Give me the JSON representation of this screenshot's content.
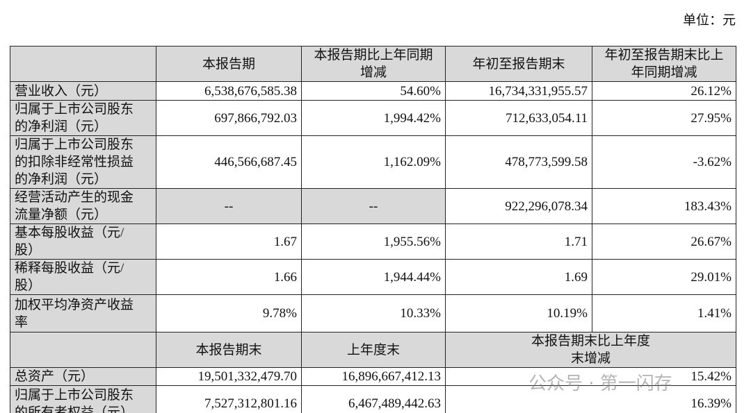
{
  "unit": "单位：元",
  "table": {
    "header": [
      "本报告期",
      "本报告期比上年同期增减",
      "年初至报告期末",
      "年初至报告期末比上年同期增减"
    ],
    "rows": [
      [
        "营业收入（元）",
        "6,538,676,585.38",
        "54.60%",
        "16,734,331,955.57",
        "26.12%"
      ],
      [
        "归属于上市公司股东的净利润（元）",
        "697,866,792.03",
        "1,994.42%",
        "712,633,054.11",
        "27.95%"
      ],
      [
        "归属于上市公司股东的扣除非经常性损益的净利润（元）",
        "446,566,687.45",
        "1,162.09%",
        "478,773,599.58",
        "-3.62%"
      ],
      [
        "经营活动产生的现金流量净额（元）",
        "--",
        "--",
        "922,296,078.34",
        "183.43%"
      ],
      [
        "基本每股收益（元/股）",
        "1.67",
        "1,955.56%",
        "1.71",
        "26.67%"
      ],
      [
        "稀释每股收益（元/股）",
        "1.66",
        "1,944.44%",
        "1.69",
        "29.01%"
      ],
      [
        "加权平均净资产收益率",
        "9.78%",
        "10.33%",
        "10.19%",
        "1.41%"
      ]
    ],
    "subheader": [
      "本报告期末",
      "上年度末",
      "本报告期末比上年度末增减"
    ],
    "subrows": [
      [
        "总资产（元）",
        "19,501,332,479.70",
        "16,896,667,412.13",
        "15.42%"
      ],
      [
        "归属于上市公司股东的所有者权益（元）",
        "7,527,312,801.16",
        "6,467,489,442.63",
        "16.39%"
      ]
    ]
  },
  "watermark": "公众号 · 第一闪存"
}
